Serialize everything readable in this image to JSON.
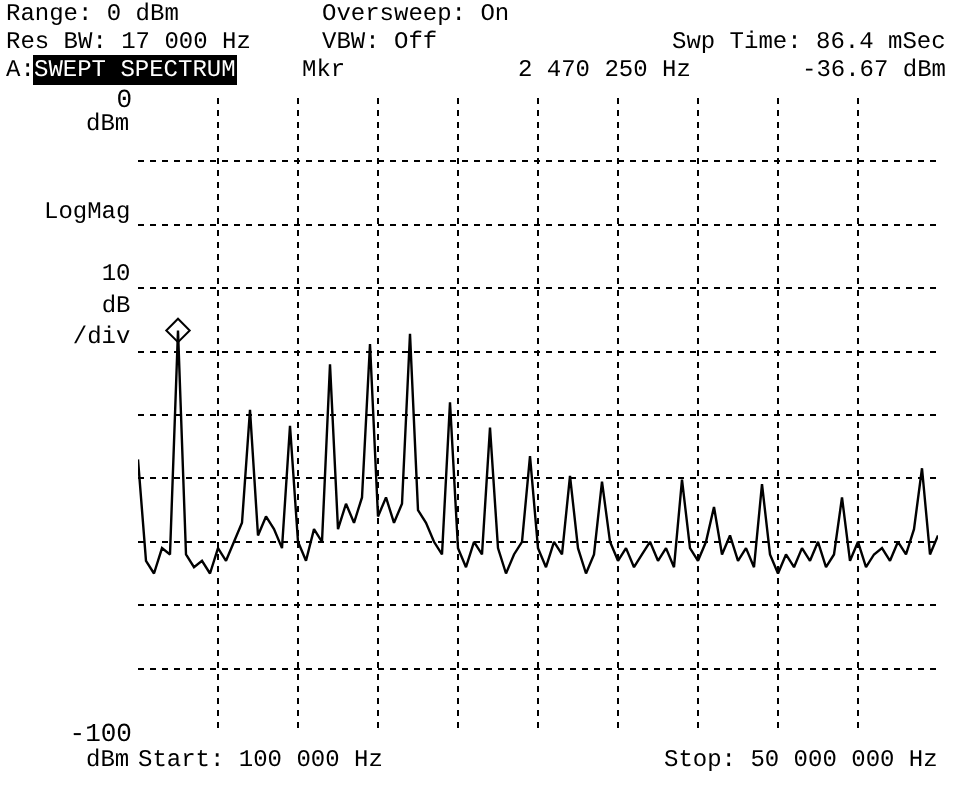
{
  "chart_data": {
    "type": "line",
    "annotations": [
      "Range: 0 dBm",
      "Oversweep: On",
      "Res BW: 17 000 Hz",
      "VBW: Off",
      "Swp Time: 86.4 mSec",
      "A:",
      "SWEPT SPECTRUM",
      "Mkr",
      "2 470 250 Hz",
      "-36.67 dBm",
      "dBm",
      "LogMag\n\n10\ndB\n/div",
      "dBm",
      "Start: 100 000 Hz",
      "Stop: 50 000 000 Hz"
    ],
    "categories": [
      null,
      null,
      null,
      null,
      null,
      null,
      null,
      null,
      null,
      null,
      null,
      null,
      null,
      null,
      null,
      null,
      null,
      null,
      null,
      null,
      null,
      null,
      null,
      null,
      null,
      null,
      null,
      null,
      null,
      null,
      null,
      null,
      null,
      null,
      null,
      null,
      null,
      null,
      null,
      null,
      null,
      null,
      null,
      null,
      null,
      null,
      null,
      null,
      null,
      null,
      null,
      null,
      null,
      null,
      null,
      null,
      null,
      null,
      null,
      null,
      null,
      null,
      null,
      null,
      null,
      null,
      null,
      null,
      null,
      null,
      null,
      null,
      null,
      null,
      null,
      null,
      null,
      null,
      null,
      null,
      null,
      null,
      null,
      null,
      null,
      null,
      null,
      null,
      null,
      null,
      null,
      null,
      null,
      null,
      null,
      null,
      null,
      null,
      null,
      null,
      null
    ],
    "ylim": [
      -100,
      0
    ],
    "yticks": [
      0,
      {
        "value": -10,
        "label": null
      },
      {
        "value": -20,
        "label": null
      },
      {
        "value": -30,
        "label": null
      },
      {
        "value": -40,
        "label": null
      },
      {
        "value": -50,
        "label": null
      },
      {
        "value": -60,
        "label": null
      },
      {
        "value": -70,
        "label": null
      },
      {
        "value": -80,
        "label": null
      },
      {
        "value": -90,
        "label": null
      },
      -100
    ],
    "grid": true,
    "line_style": "solid",
    "series": [
      {
        "color": "#000000",
        "marker": "none",
        "values": [
          -57,
          -73,
          -75,
          -71,
          -72,
          -36.67,
          -72,
          -74,
          -73,
          -75,
          -71,
          -73,
          -70,
          -67,
          -49.2,
          -69,
          -66,
          -68,
          -71,
          -51.7,
          -70,
          -73,
          -68,
          -70,
          -42,
          -68,
          -64,
          -67,
          -63,
          -38.8,
          -66,
          -63,
          -67,
          -64,
          -37.2,
          -65,
          -67,
          -70,
          -72,
          -48,
          -71,
          -74,
          -70,
          -72,
          -52,
          -71,
          -75,
          -72,
          -70,
          -56.5,
          -71,
          -74,
          -70,
          -72,
          -59.6,
          -71,
          -75,
          -72,
          -60.5,
          -70,
          -73,
          -71,
          -74,
          -72,
          -70,
          -73,
          -71,
          -74,
          -60.2,
          -71,
          -73,
          -70,
          -64.5,
          -72,
          -69,
          -73,
          -71,
          -74,
          -60.9,
          -72,
          -75,
          -72,
          -74,
          -71,
          -73,
          -70,
          -74,
          -72,
          -63,
          -73,
          -70,
          -74,
          -72,
          -71,
          -73,
          -70,
          -72,
          -68,
          -58.4,
          -72,
          -69
        ]
      },
      {
        "type": "scatter",
        "color": "#000000",
        "marker": "diamond",
        "values": [
          null,
          null,
          null,
          null,
          null,
          -36.67,
          null,
          null,
          null,
          null,
          null,
          null,
          null,
          null,
          null,
          null,
          null,
          null,
          null,
          null,
          null,
          null,
          null,
          null,
          null,
          null,
          null,
          null,
          null,
          null,
          null,
          null,
          null,
          null,
          null,
          null,
          null,
          null,
          null,
          null,
          null,
          null,
          null,
          null,
          null,
          null,
          null,
          null,
          null,
          null,
          null,
          null,
          null,
          null,
          null,
          null,
          null,
          null,
          null,
          null,
          null,
          null,
          null,
          null,
          null,
          null,
          null,
          null,
          null,
          null,
          null,
          null,
          null,
          null,
          null,
          null,
          null,
          null,
          null,
          null,
          null,
          null,
          null,
          null,
          null,
          null,
          null,
          null,
          null,
          null,
          null,
          null,
          null,
          null,
          null,
          null,
          null,
          null,
          null,
          null,
          null
        ]
      }
    ]
  }
}
